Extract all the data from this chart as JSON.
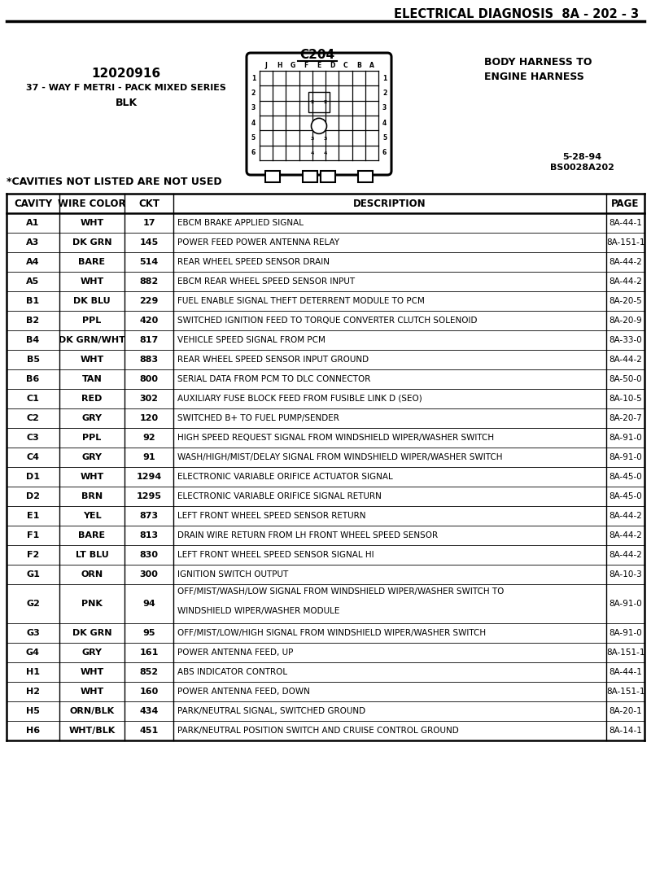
{
  "title": "ELECTRICAL DIAGNOSIS  8A - 202 - 3",
  "connector_label": "C204",
  "connector_subtitle": "BODY HARNESS TO\nENGINE HARNESS",
  "part_number": "12020916",
  "part_desc1": "37 - WAY F METRI - PACK MIXED SERIES",
  "part_desc2": "BLK",
  "date_code": "5-28-94\nBS0028A202",
  "cavities_note": "*CAVITIES NOT LISTED ARE NOT USED",
  "col_headers": [
    "CAVITY",
    "WIRE COLOR",
    "CKT",
    "DESCRIPTION",
    "PAGE"
  ],
  "rows": [
    [
      "A1",
      "WHT",
      "17",
      "EBCM BRAKE APPLIED SIGNAL",
      "8A-44-1"
    ],
    [
      "A3",
      "DK GRN",
      "145",
      "POWER FEED POWER ANTENNA RELAY",
      "8A-151-1"
    ],
    [
      "A4",
      "BARE",
      "514",
      "REAR WHEEL SPEED SENSOR DRAIN",
      "8A-44-2"
    ],
    [
      "A5",
      "WHT",
      "882",
      "EBCM REAR WHEEL SPEED SENSOR INPUT",
      "8A-44-2"
    ],
    [
      "B1",
      "DK BLU",
      "229",
      "FUEL ENABLE SIGNAL THEFT DETERRENT MODULE TO PCM",
      "8A-20-5"
    ],
    [
      "B2",
      "PPL",
      "420",
      "SWITCHED IGNITION FEED TO TORQUE CONVERTER CLUTCH SOLENOID",
      "8A-20-9"
    ],
    [
      "B4",
      "DK GRN/WHT",
      "817",
      "VEHICLE SPEED SIGNAL FROM PCM",
      "8A-33-0"
    ],
    [
      "B5",
      "WHT",
      "883",
      "REAR WHEEL SPEED SENSOR INPUT GROUND",
      "8A-44-2"
    ],
    [
      "B6",
      "TAN",
      "800",
      "SERIAL DATA FROM PCM TO DLC CONNECTOR",
      "8A-50-0"
    ],
    [
      "C1",
      "RED",
      "302",
      "AUXILIARY FUSE BLOCK FEED FROM FUSIBLE LINK D (SEO)",
      "8A-10-5"
    ],
    [
      "C2",
      "GRY",
      "120",
      "SWITCHED B+ TO FUEL PUMP/SENDER",
      "8A-20-7"
    ],
    [
      "C3",
      "PPL",
      "92",
      "HIGH SPEED REQUEST SIGNAL FROM WINDSHIELD WIPER/WASHER SWITCH",
      "8A-91-0"
    ],
    [
      "C4",
      "GRY",
      "91",
      "WASH/HIGH/MIST/DELAY SIGNAL FROM WINDSHIELD WIPER/WASHER SWITCH",
      "8A-91-0"
    ],
    [
      "D1",
      "WHT",
      "1294",
      "ELECTRONIC VARIABLE ORIFICE ACTUATOR SIGNAL",
      "8A-45-0"
    ],
    [
      "D2",
      "BRN",
      "1295",
      "ELECTRONIC VARIABLE ORIFICE SIGNAL RETURN",
      "8A-45-0"
    ],
    [
      "E1",
      "YEL",
      "873",
      "LEFT FRONT WHEEL SPEED SENSOR RETURN",
      "8A-44-2"
    ],
    [
      "F1",
      "BARE",
      "813",
      "DRAIN WIRE RETURN FROM LH FRONT WHEEL SPEED SENSOR",
      "8A-44-2"
    ],
    [
      "F2",
      "LT BLU",
      "830",
      "LEFT FRONT WHEEL SPEED SENSOR SIGNAL HI",
      "8A-44-2"
    ],
    [
      "G1",
      "ORN",
      "300",
      "IGNITION SWITCH OUTPUT",
      "8A-10-3"
    ],
    [
      "G2",
      "PNK",
      "94",
      "OFF/MIST/WASH/LOW SIGNAL FROM WINDSHIELD WIPER/WASHER SWITCH TO\nWINDSHIELD WIPER/WASHER MODULE",
      "8A-91-0"
    ],
    [
      "G3",
      "DK GRN",
      "95",
      "OFF/MIST/LOW/HIGH SIGNAL FROM WINDSHIELD WIPER/WASHER SWITCH",
      "8A-91-0"
    ],
    [
      "G4",
      "GRY",
      "161",
      "POWER ANTENNA FEED, UP",
      "8A-151-1"
    ],
    [
      "H1",
      "WHT",
      "852",
      "ABS INDICATOR CONTROL",
      "8A-44-1"
    ],
    [
      "H2",
      "WHT",
      "160",
      "POWER ANTENNA FEED, DOWN",
      "8A-151-1"
    ],
    [
      "H5",
      "ORN/BLK",
      "434",
      "PARK/NEUTRAL SIGNAL, SWITCHED GROUND",
      "8A-20-1"
    ],
    [
      "H6",
      "WHT/BLK",
      "451",
      "PARK/NEUTRAL POSITION SWITCH AND CRUISE CONTROL GROUND",
      "8A-14-1"
    ]
  ],
  "bg_color": "#ffffff",
  "text_color": "#000000",
  "connector_pin_labels": [
    "J",
    "H",
    "G",
    "F",
    "E",
    "D",
    "C",
    "B",
    "A"
  ]
}
